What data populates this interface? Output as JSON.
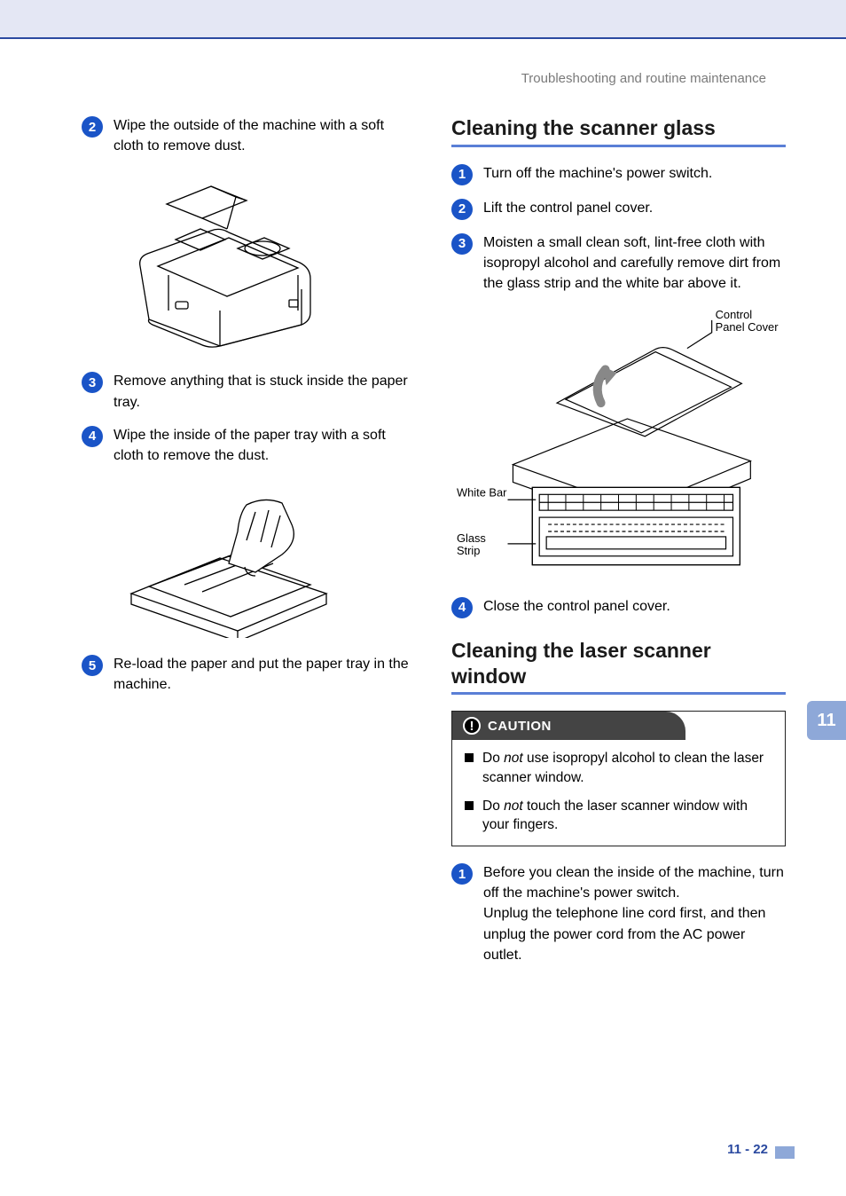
{
  "header": {
    "breadcrumb": "Troubleshooting and routine maintenance"
  },
  "colors": {
    "accent": "#2b4aa0",
    "bullet": "#1a54c7",
    "banner": "#e4e7f4",
    "section_rule": "#5a7fd6",
    "tab": "#8ea8d8"
  },
  "left_column": {
    "steps": [
      {
        "num": "2",
        "text": "Wipe the outside of the machine with a soft cloth to remove dust."
      },
      {
        "num": "3",
        "text": "Remove anything that is stuck inside the paper tray."
      },
      {
        "num": "4",
        "text": "Wipe the inside of the paper tray with a soft cloth to remove the dust."
      },
      {
        "num": "5",
        "text": "Re-load the paper and put the paper tray in the machine."
      }
    ]
  },
  "right_column": {
    "section1": {
      "title": "Cleaning the scanner glass",
      "steps": [
        {
          "num": "1",
          "text": "Turn off the machine's power switch."
        },
        {
          "num": "2",
          "text": "Lift the control panel cover."
        },
        {
          "num": "3",
          "text": "Moisten a small clean soft, lint-free cloth with isopropyl alcohol and carefully remove dirt from the glass strip and the white bar above it."
        },
        {
          "num": "4",
          "text": "Close the control panel cover."
        }
      ],
      "illustration_labels": {
        "control_panel_cover": "Control Panel Cover",
        "white_bar": "White Bar",
        "glass_strip": "Glass Strip"
      }
    },
    "section2": {
      "title": "Cleaning the laser scanner window",
      "caution": {
        "label": "CAUTION",
        "items": [
          {
            "pre": "Do ",
            "em": "not",
            "post": " use isopropyl alcohol to clean the laser scanner window."
          },
          {
            "pre": "Do ",
            "em": "not",
            "post": " touch the laser scanner window with your fingers."
          }
        ]
      },
      "steps": [
        {
          "num": "1",
          "text_a": "Before you clean the inside of the machine, turn off the machine's power switch.",
          "text_b": "Unplug the telephone line cord first, and then unplug the power cord from the AC power outlet."
        }
      ]
    }
  },
  "chapter_tab": "11",
  "page_number": "11 - 22"
}
